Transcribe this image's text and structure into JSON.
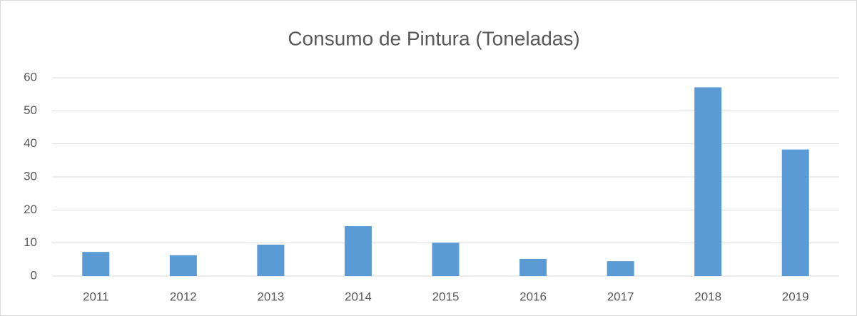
{
  "chart_data": {
    "type": "bar",
    "title": "Consumo de Pintura (Toneladas)",
    "categories": [
      "2011",
      "2012",
      "2013",
      "2014",
      "2015",
      "2016",
      "2017",
      "2018",
      "2019"
    ],
    "values": [
      7.3,
      6.3,
      9.5,
      15.1,
      10.1,
      5.2,
      4.5,
      57.1,
      38.3
    ],
    "color": "#5b9bd5",
    "ylim": [
      0,
      60
    ],
    "yticks": [
      0,
      10,
      20,
      30,
      40,
      50,
      60
    ],
    "grid": true
  }
}
